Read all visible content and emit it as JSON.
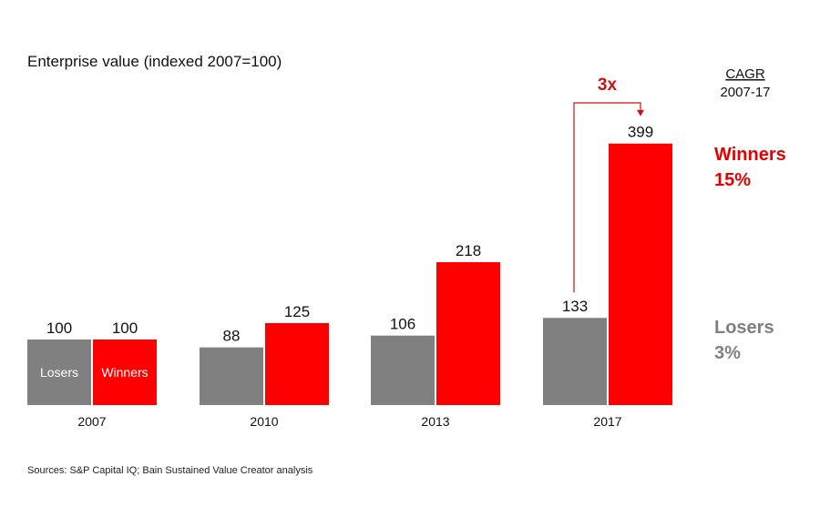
{
  "chart_data": {
    "type": "bar",
    "title": "Enterprise value (indexed 2007=100)",
    "categories": [
      "2007",
      "2010",
      "2013",
      "2017"
    ],
    "series": [
      {
        "name": "Losers",
        "color": "#808080",
        "values": [
          100,
          88,
          106,
          133
        ]
      },
      {
        "name": "Winners",
        "color": "#ff0000",
        "values": [
          100,
          125,
          218,
          399
        ]
      }
    ],
    "ylim": [
      0,
      420
    ],
    "grid": false,
    "cagr": {
      "heading": "CAGR",
      "period": "2007-17",
      "winners_label": "Winners",
      "winners_value": "15%",
      "losers_label": "Losers",
      "losers_value": "3%"
    },
    "annotation": {
      "text": "3x",
      "from_series": "Losers",
      "to_series": "Winners",
      "category": "2017"
    },
    "source": "Sources: S&P Capital IQ; Bain Sustained Value Creator analysis"
  }
}
